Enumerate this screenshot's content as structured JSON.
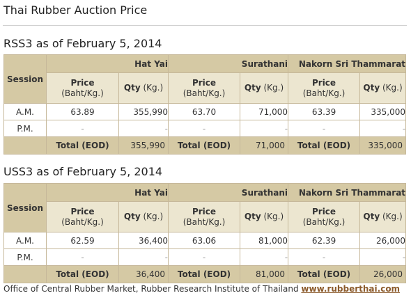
{
  "page_title": "Thai Rubber Auction Price",
  "column_labels": {
    "session": "Session",
    "price": "Price",
    "price_unit": "(Baht/Kg.)",
    "qty": "Qty",
    "qty_unit": "(Kg.)",
    "total": "Total (EOD)"
  },
  "markets": [
    "Hat Yai",
    "Surathani",
    "Nakorn Sri Thammarat"
  ],
  "rss3": {
    "title": "RSS3 as of February 5, 2014",
    "rows": [
      {
        "label": "A.M.",
        "values": [
          "63.89",
          "355,990",
          "63.70",
          "71,000",
          "63.39",
          "335,000"
        ]
      },
      {
        "label": "P.M.",
        "values": [
          "-",
          "-",
          "-",
          "-",
          "-",
          "-"
        ]
      }
    ],
    "totals": [
      "355,990",
      "71,000",
      "335,000"
    ]
  },
  "uss3": {
    "title": "USS3 as of February 5, 2014",
    "rows": [
      {
        "label": "A.M.",
        "values": [
          "62.59",
          "36,400",
          "63.06",
          "81,000",
          "62.39",
          "26,000"
        ]
      },
      {
        "label": "P.M.",
        "values": [
          "-",
          "-",
          "-",
          "-",
          "-",
          "-"
        ]
      }
    ],
    "totals": [
      "36,400",
      "81,000",
      "26,000"
    ]
  },
  "footer": {
    "text": "Office of Central Rubber Market, Rubber Research Institute of Thailand",
    "link": "www.rubberthai.com"
  }
}
